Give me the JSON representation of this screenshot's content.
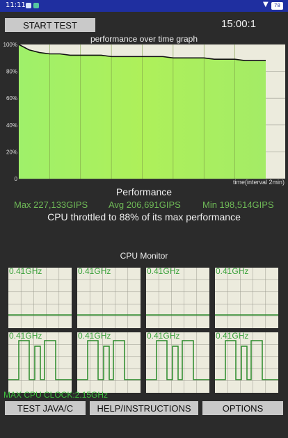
{
  "status_bar": {
    "time": "11:11",
    "battery": "78"
  },
  "toolbar": {
    "start_label": "START TEST",
    "timer": "15:00:1"
  },
  "graph": {
    "title": "performance over time graph",
    "y_ticks": [
      "100%",
      "80%",
      "60%",
      "40%",
      "20%",
      "0"
    ],
    "x_label": "time(interval 2min)"
  },
  "chart_data": {
    "type": "area",
    "title": "performance over time graph",
    "xlabel": "time(interval 2min)",
    "ylabel": "",
    "ylim": [
      0,
      100
    ],
    "y_ticks": [
      0,
      20,
      40,
      60,
      80,
      100
    ],
    "series": [
      {
        "values": [
          100,
          96,
          94,
          93,
          93,
          92,
          92,
          92,
          92,
          91,
          91,
          91,
          91,
          91,
          91,
          90,
          90,
          90,
          90,
          89,
          89,
          89,
          88,
          88,
          88
        ]
      }
    ]
  },
  "performance": {
    "heading": "Performance",
    "max": "Max 227,133GIPS",
    "avg": "Avg 206,691GIPS",
    "min": "Min 198,514GIPS",
    "throttle": "CPU throttled to 88% of its max performance"
  },
  "cpu_monitor": {
    "heading": "CPU Monitor",
    "cores": [
      {
        "freq": "0.41GHz"
      },
      {
        "freq": "0.41GHz"
      },
      {
        "freq": "0.41GHz"
      },
      {
        "freq": "0.41GHz"
      },
      {
        "freq": "0.41GHz"
      },
      {
        "freq": "0.41GHz"
      },
      {
        "freq": "0.41GHz"
      },
      {
        "freq": "0.41GHz"
      }
    ],
    "max_clock": "MAX CPU CLOCK:2.15GHz"
  },
  "bottom_buttons": {
    "java_c": "TEST JAVA/C",
    "help": "HELP/INSTRUCTIONS",
    "options": "OPTIONS"
  }
}
